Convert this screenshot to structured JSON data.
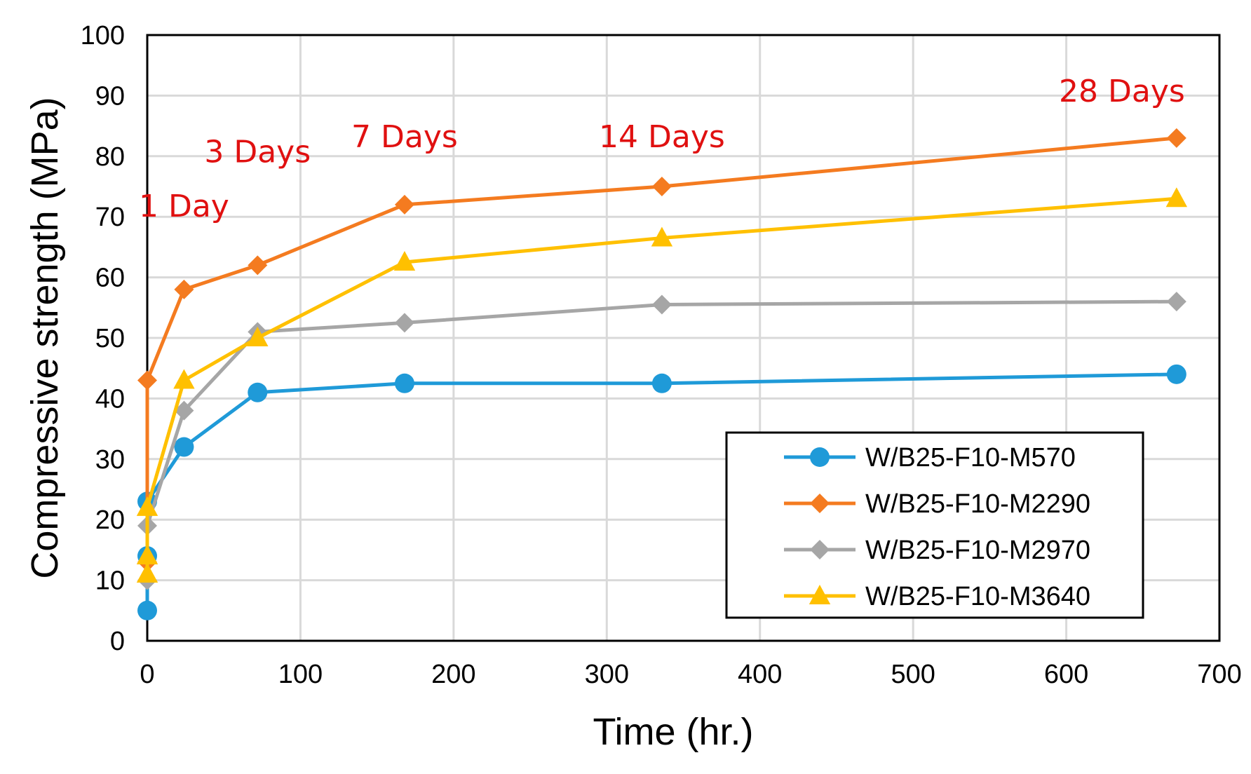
{
  "chart_data": {
    "type": "line",
    "title": "",
    "xlabel": "Time (hr.)",
    "ylabel": "Compressive strength (MPa)",
    "xlim": [
      0,
      700
    ],
    "ylim": [
      0,
      100
    ],
    "xticks": [
      0,
      100,
      200,
      300,
      400,
      500,
      600,
      700
    ],
    "yticks": [
      0,
      10,
      20,
      30,
      40,
      50,
      60,
      70,
      80,
      90,
      100
    ],
    "grid": true,
    "legend_position": "bottom-right",
    "series": [
      {
        "name": "W/B25-F10-M570",
        "color": "#1f9ad8",
        "marker": "circle",
        "x": [
          0,
          0,
          0,
          24,
          72,
          168,
          336,
          672
        ],
        "y": [
          5,
          14,
          23,
          32,
          41,
          42.5,
          42.5,
          44
        ]
      },
      {
        "name": "W/B25-F10-M2290",
        "color": "#f47b20",
        "marker": "diamond",
        "x": [
          0,
          0,
          24,
          72,
          168,
          336,
          672
        ],
        "y": [
          13,
          43,
          58,
          62,
          72,
          75,
          83
        ]
      },
      {
        "name": "W/B25-F10-M2970",
        "color": "#a6a6a6",
        "marker": "diamond",
        "x": [
          0,
          0,
          24,
          72,
          168,
          336,
          672
        ],
        "y": [
          10,
          19,
          38,
          51,
          52.5,
          55.5,
          56
        ]
      },
      {
        "name": "W/B25-F10-M3640",
        "color": "#ffc000",
        "marker": "triangle",
        "x": [
          0,
          0,
          0,
          24,
          72,
          168,
          336,
          672
        ],
        "y": [
          11,
          14,
          22,
          43,
          50,
          62.5,
          66.5,
          73
        ]
      }
    ],
    "annotations": [
      {
        "text": "1 Day",
        "x": 24,
        "y": 70
      },
      {
        "text": "3 Days",
        "x": 72,
        "y": 79
      },
      {
        "text": "7 Days",
        "x": 168,
        "y": 81.5
      },
      {
        "text": "14 Days",
        "x": 336,
        "y": 81.5
      },
      {
        "text": "28 Days",
        "x": 672,
        "y": 89
      },
      {
        "text_color": "#e01010"
      }
    ]
  }
}
